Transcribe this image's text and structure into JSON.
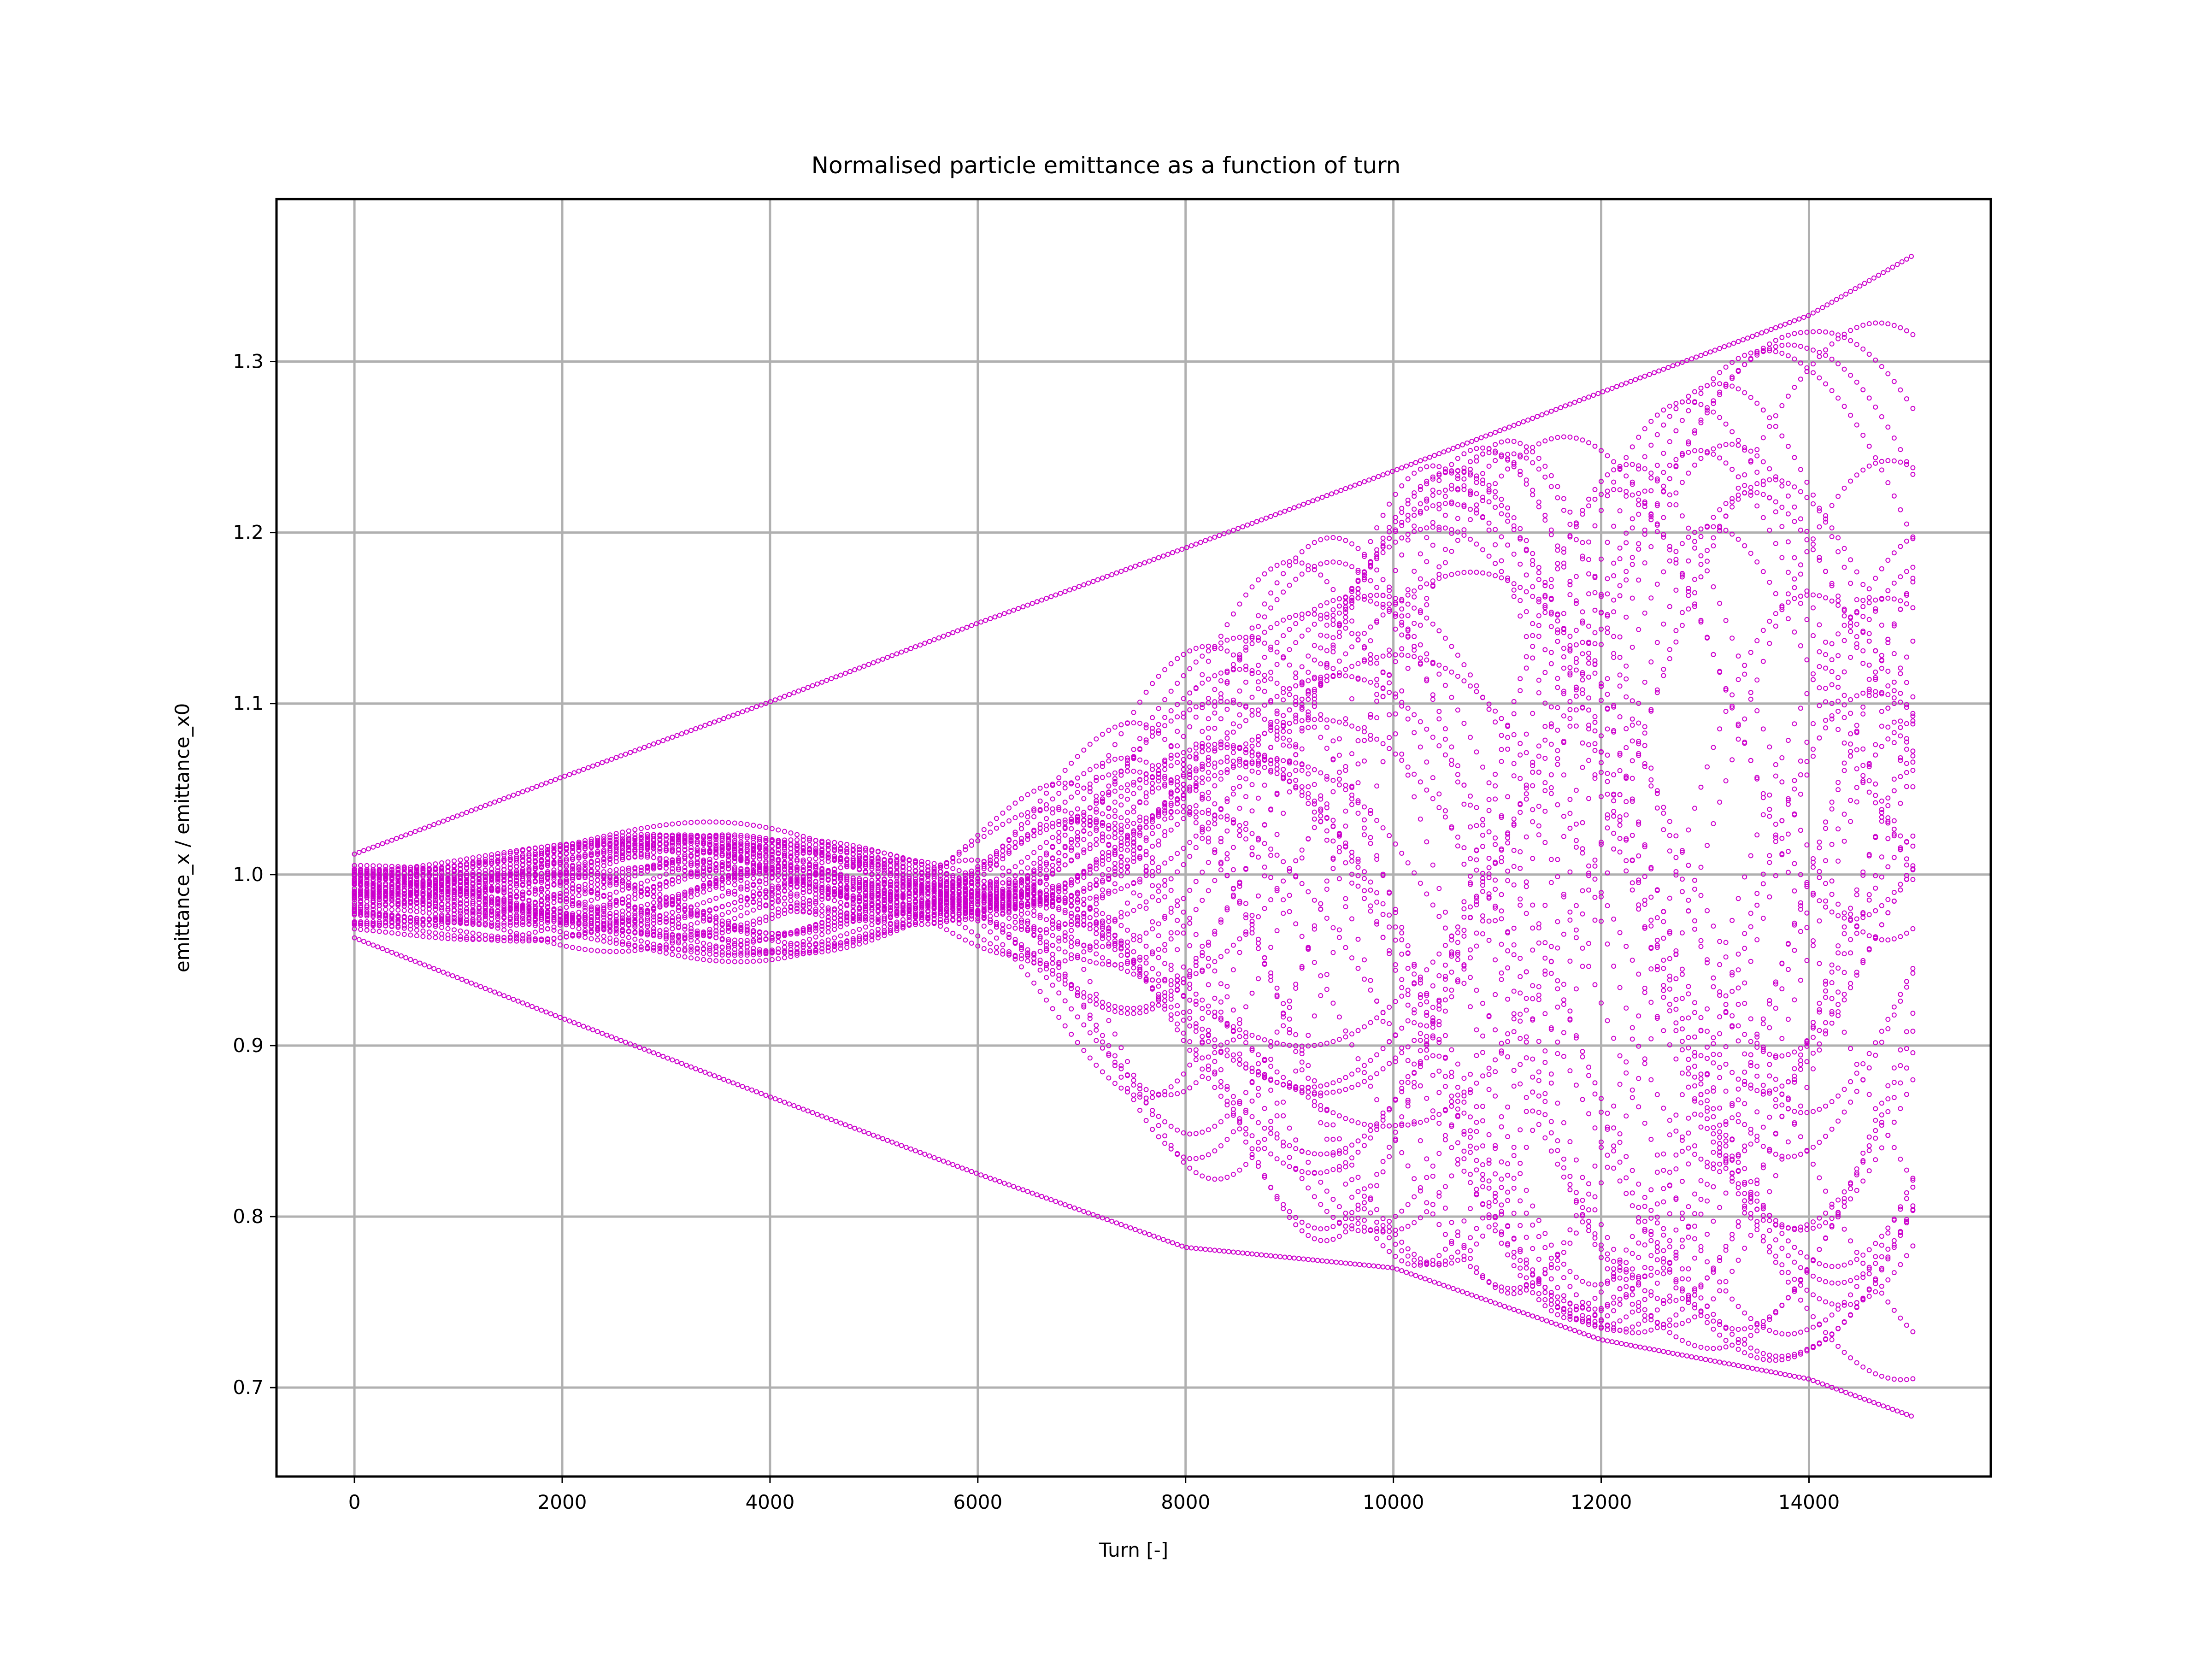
{
  "chart_data": {
    "type": "scatter",
    "title": "Normalised particle emittance as a function of turn",
    "xlabel": "Turn [-]",
    "ylabel": "emittance_x / emittance_x0",
    "xlim": [
      -750,
      15750
    ],
    "ylim": [
      0.648,
      1.395
    ],
    "x_ticks": [
      0,
      2000,
      4000,
      6000,
      8000,
      10000,
      12000,
      14000
    ],
    "x_tick_labels": [
      "0",
      "2000",
      "4000",
      "6000",
      "8000",
      "10000",
      "12000",
      "14000"
    ],
    "y_ticks": [
      0.7,
      0.8,
      0.9,
      1.0,
      1.1,
      1.2,
      1.3
    ],
    "y_tick_labels": [
      "0.7",
      "0.8",
      "0.9",
      "1.0",
      "1.1",
      "1.2",
      "1.3"
    ],
    "grid": true,
    "legend": "none",
    "marker": "hollow-circle",
    "color": "#cc00cc",
    "x_range": [
      0,
      15000
    ],
    "envelope_upper": [
      [
        0,
        1.012
      ],
      [
        2000,
        1.057
      ],
      [
        4000,
        1.101
      ],
      [
        6000,
        1.147
      ],
      [
        8000,
        1.191
      ],
      [
        10000,
        1.236
      ],
      [
        12000,
        1.282
      ],
      [
        14000,
        1.327
      ],
      [
        15000,
        1.362
      ]
    ],
    "envelope_lower": [
      [
        0,
        0.963
      ],
      [
        2000,
        0.916
      ],
      [
        4000,
        0.87
      ],
      [
        6000,
        0.825
      ],
      [
        8000,
        0.782
      ],
      [
        10000,
        0.77
      ],
      [
        12000,
        0.728
      ],
      [
        14000,
        0.705
      ],
      [
        15000,
        0.683
      ]
    ]
  }
}
